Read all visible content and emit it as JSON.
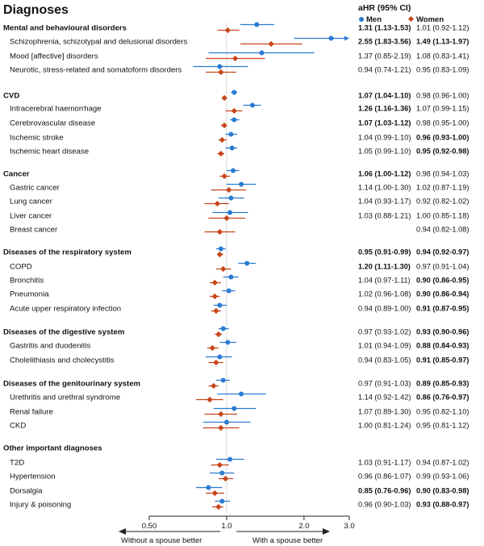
{
  "chart_data": {
    "type": "forest",
    "title": "Diagnoses",
    "column_header": "aHR (95% CI)",
    "x_scale": "log",
    "xlim": [
      0.5,
      3.0
    ],
    "xticks": [
      {
        "value": 0.5,
        "label": "0.50"
      },
      {
        "value": 1.0,
        "label": "1.0"
      },
      {
        "value": 2.0,
        "label": "2.0"
      },
      {
        "value": 3.0,
        "label": "3.0"
      }
    ],
    "reference_line": 1.0,
    "legend": [
      {
        "name": "Men",
        "color": "#2a7bd1",
        "marker": "circle"
      },
      {
        "name": "Women",
        "color": "#c8451a",
        "marker": "diamond"
      }
    ],
    "arrows": {
      "left": "Without a spouse better",
      "right": "With a spouse better"
    },
    "rows": [
      {
        "label": "Mental and behavioural disorders",
        "bold": true,
        "men": {
          "hr": 1.31,
          "lo": 1.13,
          "hi": 1.53,
          "text": "1.31 (1.13-1.53)",
          "sig": true
        },
        "women": {
          "hr": 1.01,
          "lo": 0.92,
          "hi": 1.12,
          "text": "1.01 (0.92-1.12)",
          "sig": false
        }
      },
      {
        "label": "Schizophrenia, schizotypal and delusional disorders",
        "bold": false,
        "men": {
          "hr": 2.55,
          "lo": 1.83,
          "hi": 3.56,
          "text": "2.55 (1.83-3.56)",
          "sig": true,
          "arrow": true
        },
        "women": {
          "hr": 1.49,
          "lo": 1.13,
          "hi": 1.97,
          "text": "1.49 (1.13-1.97)",
          "sig": true
        }
      },
      {
        "label": "Mood [affective] disorders",
        "bold": false,
        "men": {
          "hr": 1.37,
          "lo": 0.85,
          "hi": 2.19,
          "text": "1.37 (0.85-2.19)",
          "sig": false
        },
        "women": {
          "hr": 1.08,
          "lo": 0.83,
          "hi": 1.41,
          "text": "1.08 (0.83-1.41)",
          "sig": false
        }
      },
      {
        "label": "Neurotic, stress-related and somatoform disorders",
        "bold": false,
        "men": {
          "hr": 0.94,
          "lo": 0.74,
          "hi": 1.21,
          "text": "0.94 (0.74-1.21)",
          "sig": false
        },
        "women": {
          "hr": 0.95,
          "lo": 0.83,
          "hi": 1.09,
          "text": "0.95 (0.83-1.09)",
          "sig": false
        }
      },
      {
        "label": "CVD",
        "bold": true,
        "men": {
          "hr": 1.07,
          "lo": 1.04,
          "hi": 1.1,
          "text": "1.07 (1.04-1.10)",
          "sig": true
        },
        "women": {
          "hr": 0.98,
          "lo": 0.96,
          "hi": 1.0,
          "text": "0.98 (0.96-1.00)",
          "sig": false
        }
      },
      {
        "label": "Intracerebral haemorrhage",
        "bold": false,
        "men": {
          "hr": 1.26,
          "lo": 1.16,
          "hi": 1.36,
          "text": "1.26 (1.16-1.36)",
          "sig": true
        },
        "women": {
          "hr": 1.07,
          "lo": 0.99,
          "hi": 1.15,
          "text": "1.07 (0.99-1.15)",
          "sig": false
        }
      },
      {
        "label": "Cerebrovascular disease",
        "bold": false,
        "men": {
          "hr": 1.07,
          "lo": 1.03,
          "hi": 1.12,
          "text": "1.07 (1.03-1.12)",
          "sig": true
        },
        "women": {
          "hr": 0.98,
          "lo": 0.95,
          "hi": 1.0,
          "text": "0.98 (0.95-1.00)",
          "sig": false
        }
      },
      {
        "label": "Ischemic stroke",
        "bold": false,
        "men": {
          "hr": 1.04,
          "lo": 0.99,
          "hi": 1.1,
          "text": "1.04 (0.99-1.10)",
          "sig": false
        },
        "women": {
          "hr": 0.96,
          "lo": 0.93,
          "hi": 1.0,
          "text": "0.96 (0.93-1.00)",
          "sig": true
        }
      },
      {
        "label": "Ischemic heart disease",
        "bold": false,
        "men": {
          "hr": 1.05,
          "lo": 0.99,
          "hi": 1.1,
          "text": "1.05 (0.99-1.10)",
          "sig": false
        },
        "women": {
          "hr": 0.95,
          "lo": 0.92,
          "hi": 0.98,
          "text": "0.95 (0.92-0.98)",
          "sig": true
        }
      },
      {
        "label": "Cancer",
        "bold": true,
        "men": {
          "hr": 1.06,
          "lo": 1.0,
          "hi": 1.12,
          "text": "1.06 (1.00-1.12)",
          "sig": true
        },
        "women": {
          "hr": 0.98,
          "lo": 0.94,
          "hi": 1.03,
          "text": "0.98 (0.94-1.03)",
          "sig": false
        }
      },
      {
        "label": "Gastric cancer",
        "bold": false,
        "men": {
          "hr": 1.14,
          "lo": 1.0,
          "hi": 1.3,
          "text": "1.14 (1.00-1.30)",
          "sig": false
        },
        "women": {
          "hr": 1.02,
          "lo": 0.87,
          "hi": 1.19,
          "text": "1.02 (0.87-1.19)",
          "sig": false
        }
      },
      {
        "label": "Lung cancer",
        "bold": false,
        "men": {
          "hr": 1.04,
          "lo": 0.93,
          "hi": 1.17,
          "text": "1.04 (0.93-1.17)",
          "sig": false
        },
        "women": {
          "hr": 0.92,
          "lo": 0.82,
          "hi": 1.02,
          "text": "0.92 (0.82-1.02)",
          "sig": false
        }
      },
      {
        "label": "Liver cancer",
        "bold": false,
        "men": {
          "hr": 1.03,
          "lo": 0.88,
          "hi": 1.21,
          "text": "1.03 (0.88-1.21)",
          "sig": false
        },
        "women": {
          "hr": 1.0,
          "lo": 0.85,
          "hi": 1.18,
          "text": "1.00 (0.85-1.18)",
          "sig": false
        }
      },
      {
        "label": "Breast cancer",
        "bold": false,
        "men": null,
        "women": {
          "hr": 0.94,
          "lo": 0.82,
          "hi": 1.08,
          "text": "0.94 (0.82-1.08)",
          "sig": false
        }
      },
      {
        "label": "Diseases of the respiratory system",
        "bold": true,
        "men": {
          "hr": 0.95,
          "lo": 0.91,
          "hi": 0.99,
          "text": "0.95 (0.91-0.99)",
          "sig": true
        },
        "women": {
          "hr": 0.94,
          "lo": 0.92,
          "hi": 0.97,
          "text": "0.94 (0.92-0.97)",
          "sig": true
        }
      },
      {
        "label": "COPD",
        "bold": false,
        "men": {
          "hr": 1.2,
          "lo": 1.11,
          "hi": 1.3,
          "text": "1.20 (1.11-1.30)",
          "sig": true
        },
        "women": {
          "hr": 0.97,
          "lo": 0.91,
          "hi": 1.04,
          "text": "0.97 (0.91-1.04)",
          "sig": false
        }
      },
      {
        "label": "Bronchitis",
        "bold": false,
        "men": {
          "hr": 1.04,
          "lo": 0.97,
          "hi": 1.11,
          "text": "1.04 (0.97-1.11)",
          "sig": false
        },
        "women": {
          "hr": 0.9,
          "lo": 0.86,
          "hi": 0.95,
          "text": "0.90 (0.86-0.95)",
          "sig": true
        }
      },
      {
        "label": "Pneumonia",
        "bold": false,
        "men": {
          "hr": 1.02,
          "lo": 0.96,
          "hi": 1.08,
          "text": "1.02 (0.96-1.08)",
          "sig": false
        },
        "women": {
          "hr": 0.9,
          "lo": 0.86,
          "hi": 0.94,
          "text": "0.90 (0.86-0.94)",
          "sig": true
        }
      },
      {
        "label": "Acute upper respiratory infection",
        "bold": false,
        "men": {
          "hr": 0.94,
          "lo": 0.89,
          "hi": 1.0,
          "text": "0.94 (0.89-1.00)",
          "sig": false
        },
        "women": {
          "hr": 0.91,
          "lo": 0.87,
          "hi": 0.95,
          "text": "0.91 (0.87-0.95)",
          "sig": true
        }
      },
      {
        "label": "Diseases of the digestive system",
        "bold": true,
        "men": {
          "hr": 0.97,
          "lo": 0.93,
          "hi": 1.02,
          "text": "0.97 (0.93-1.02)",
          "sig": false
        },
        "women": {
          "hr": 0.93,
          "lo": 0.9,
          "hi": 0.96,
          "text": "0.93 (0.90-0.96)",
          "sig": true
        }
      },
      {
        "label": "Gastritis and duodenitis",
        "bold": false,
        "men": {
          "hr": 1.01,
          "lo": 0.94,
          "hi": 1.09,
          "text": "1.01 (0.94-1.09)",
          "sig": false
        },
        "women": {
          "hr": 0.88,
          "lo": 0.84,
          "hi": 0.93,
          "text": "0.88 (0.84-0.93)",
          "sig": true
        }
      },
      {
        "label": "Cholelithiasis and cholecystitis",
        "bold": false,
        "men": {
          "hr": 0.94,
          "lo": 0.83,
          "hi": 1.05,
          "text": "0.94 (0.83-1.05)",
          "sig": false
        },
        "women": {
          "hr": 0.91,
          "lo": 0.85,
          "hi": 0.97,
          "text": "0.91 (0.85-0.97)",
          "sig": true
        }
      },
      {
        "label": "Diseases of the genitourinary system",
        "bold": true,
        "men": {
          "hr": 0.97,
          "lo": 0.91,
          "hi": 1.03,
          "text": "0.97 (0.91-1.03)",
          "sig": false
        },
        "women": {
          "hr": 0.89,
          "lo": 0.85,
          "hi": 0.93,
          "text": "0.89 (0.85-0.93)",
          "sig": true
        }
      },
      {
        "label": "Urethritis and urethral syndrome",
        "bold": false,
        "men": {
          "hr": 1.14,
          "lo": 0.92,
          "hi": 1.42,
          "text": "1.14 (0.92-1.42)",
          "sig": false
        },
        "women": {
          "hr": 0.86,
          "lo": 0.76,
          "hi": 0.97,
          "text": "0.86 (0.76-0.97)",
          "sig": true
        }
      },
      {
        "label": "Renal failure",
        "bold": false,
        "men": {
          "hr": 1.07,
          "lo": 0.89,
          "hi": 1.3,
          "text": "1.07 (0.89-1.30)",
          "sig": false
        },
        "women": {
          "hr": 0.95,
          "lo": 0.82,
          "hi": 1.1,
          "text": "0.95 (0.82-1.10)",
          "sig": false
        }
      },
      {
        "label": "CKD",
        "bold": false,
        "men": {
          "hr": 1.0,
          "lo": 0.81,
          "hi": 1.24,
          "text": "1.00 (0.81-1.24)",
          "sig": false
        },
        "women": {
          "hr": 0.95,
          "lo": 0.81,
          "hi": 1.12,
          "text": "0.95 (0.81-1.12)",
          "sig": false
        }
      },
      {
        "label": "Other important diagnoses",
        "bold": true,
        "men": null,
        "women": null
      },
      {
        "label": "T2D",
        "bold": false,
        "men": {
          "hr": 1.03,
          "lo": 0.91,
          "hi": 1.17,
          "text": "1.03 (0.91-1.17)",
          "sig": false
        },
        "women": {
          "hr": 0.94,
          "lo": 0.87,
          "hi": 1.02,
          "text": "0.94 (0.87-1.02)",
          "sig": false
        }
      },
      {
        "label": "Hypertension",
        "bold": false,
        "men": {
          "hr": 0.96,
          "lo": 0.86,
          "hi": 1.07,
          "text": "0.96 (0.86-1.07)",
          "sig": false
        },
        "women": {
          "hr": 0.99,
          "lo": 0.93,
          "hi": 1.06,
          "text": "0.99 (0.93-1.06)",
          "sig": false
        }
      },
      {
        "label": "Dorsalgia",
        "bold": false,
        "men": {
          "hr": 0.85,
          "lo": 0.76,
          "hi": 0.96,
          "text": "0.85 (0.76-0.96)",
          "sig": true
        },
        "women": {
          "hr": 0.9,
          "lo": 0.83,
          "hi": 0.98,
          "text": "0.90 (0.83-0.98)",
          "sig": true
        }
      },
      {
        "label": "Injury & poisoning",
        "bold": false,
        "men": {
          "hr": 0.96,
          "lo": 0.9,
          "hi": 1.03,
          "text": "0.96 (0.90-1.03)",
          "sig": false
        },
        "women": {
          "hr": 0.93,
          "lo": 0.88,
          "hi": 0.97,
          "text": "0.93 (0.88-0.97)",
          "sig": true
        }
      }
    ]
  }
}
